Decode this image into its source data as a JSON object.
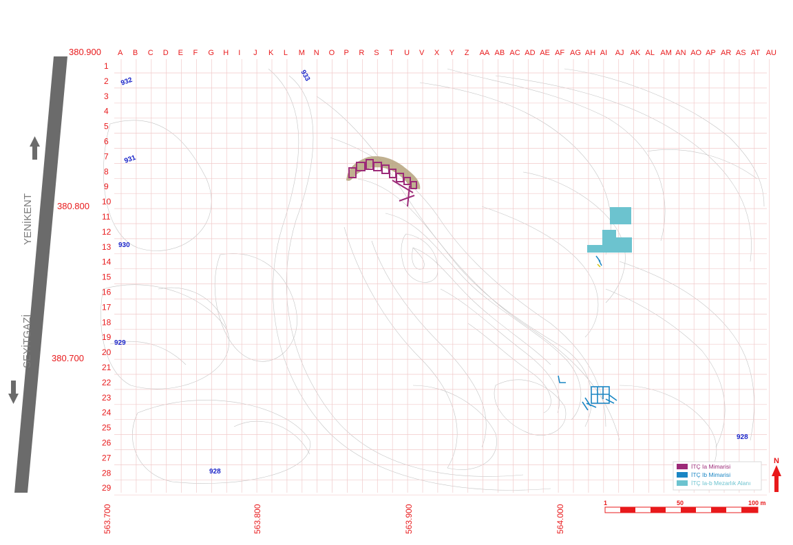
{
  "grid": {
    "columns": [
      "A",
      "B",
      "C",
      "D",
      "E",
      "F",
      "G",
      "H",
      "I",
      "J",
      "K",
      "L",
      "M",
      "N",
      "O",
      "P",
      "R",
      "S",
      "T",
      "U",
      "V",
      "X",
      "Y",
      "Z",
      "AA",
      "AB",
      "AC",
      "AD",
      "AE",
      "AF",
      "AG",
      "AH",
      "AI",
      "AJ",
      "AK",
      "AL",
      "AM",
      "AN",
      "AO",
      "AP",
      "AR",
      "AS",
      "AT",
      "AU"
    ],
    "rows": [
      "1",
      "2",
      "3",
      "4",
      "5",
      "6",
      "7",
      "8",
      "9",
      "10",
      "11",
      "12",
      "13",
      "14",
      "15",
      "16",
      "17",
      "18",
      "19",
      "20",
      "21",
      "22",
      "23",
      "24",
      "25",
      "26",
      "27",
      "28",
      "29"
    ]
  },
  "coordinates": {
    "northing": [
      "380.900",
      "380.800",
      "380.700"
    ],
    "easting": [
      "563.700",
      "563.800",
      "563.900",
      "564.000"
    ]
  },
  "elevation_labels": [
    "932",
    "933",
    "931",
    "930",
    "929",
    "928",
    "928"
  ],
  "road": {
    "north_label": "YENİKENT",
    "south_label": "SEYİTGAZİ"
  },
  "legend": {
    "items": [
      {
        "label": "İTÇ Ia Mimarisi",
        "color": "#9c2a78"
      },
      {
        "label": "İTÇ Ib Mimarisi",
        "color": "#1a86c4"
      },
      {
        "label": "İTÇ Ia-b Mezarlık Alanı",
        "color": "#6cc3cf"
      }
    ]
  },
  "north_arrow": {
    "label": "N"
  },
  "scale_bar": {
    "labels": [
      "1",
      "50",
      "100 m"
    ]
  },
  "colors": {
    "grid_red": "#e8191b",
    "ia_architecture": "#9c2a78",
    "ib_architecture": "#1a86c4",
    "cemetery": "#6cc3cf",
    "ochre_fill": "#b5a27c",
    "road": "#6b6b6b"
  }
}
